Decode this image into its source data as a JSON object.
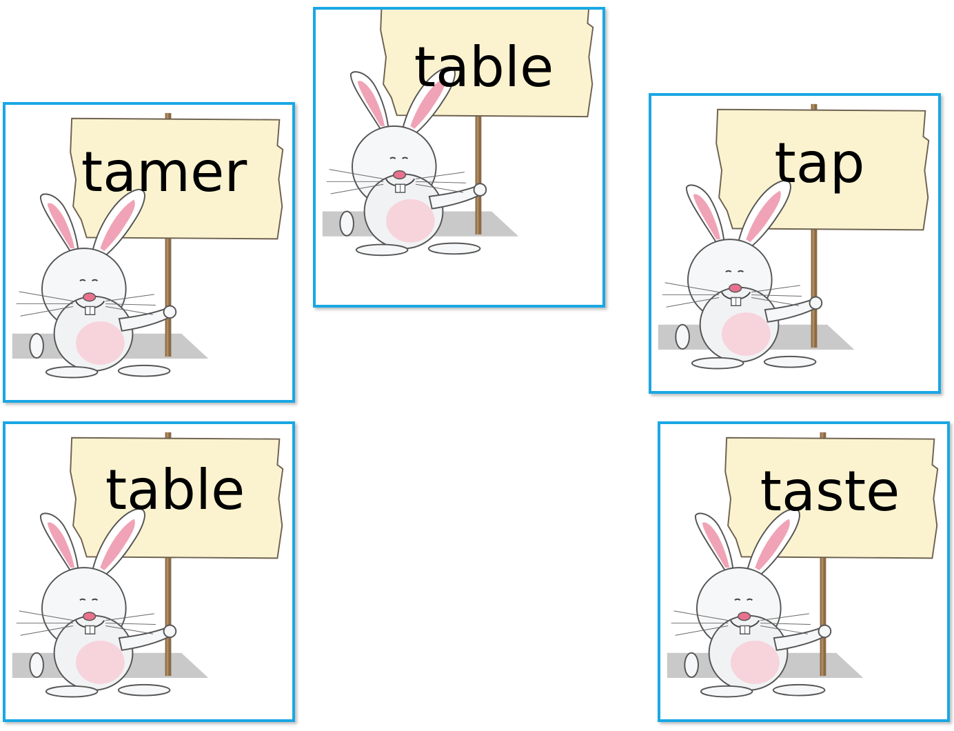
{
  "cards": [
    {
      "word": "tamer"
    },
    {
      "word": "table"
    },
    {
      "word": "tap"
    },
    {
      "word": "table"
    },
    {
      "word": "taste"
    }
  ],
  "colors": {
    "card_border": "#1aa7e4",
    "sign": "#fbf3cf",
    "bunny_ear_inner": "#f0a3b6",
    "shadow": "#9a9a9a"
  },
  "icon": "bunny-holding-sign"
}
